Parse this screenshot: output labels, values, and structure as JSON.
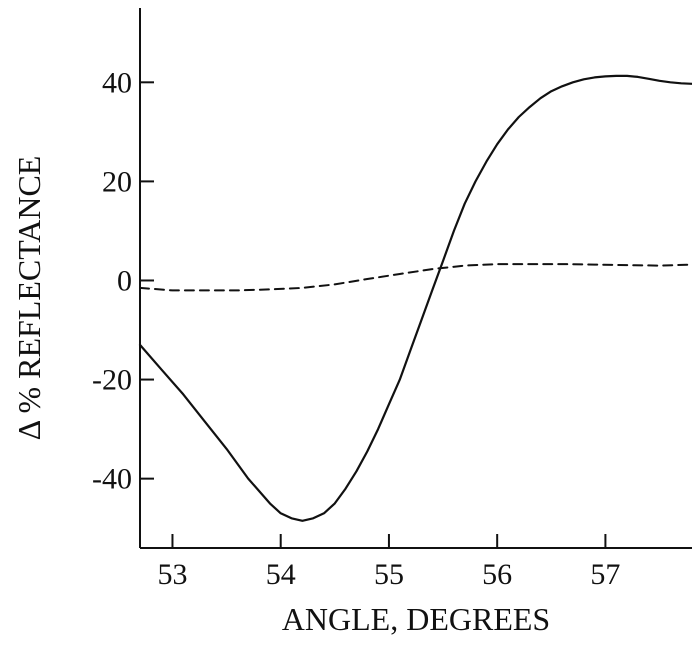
{
  "chart_data": {
    "type": "line",
    "title": "",
    "xlabel": "ANGLE, DEGREES",
    "ylabel": "Δ % REFLECTANCE",
    "xlim": [
      52.7,
      57.8
    ],
    "ylim": [
      -54,
      55
    ],
    "x_ticks": [
      53,
      54,
      55,
      56,
      57
    ],
    "y_ticks": [
      40,
      20,
      0,
      -20,
      -40
    ],
    "grid": false,
    "legend": "none",
    "series": [
      {
        "line_style": "solid",
        "color": "#111111",
        "x": [
          52.7,
          52.9,
          53.1,
          53.3,
          53.5,
          53.7,
          53.9,
          54.0,
          54.1,
          54.2,
          54.3,
          54.4,
          54.5,
          54.6,
          54.7,
          54.8,
          54.9,
          55.0,
          55.1,
          55.2,
          55.3,
          55.4,
          55.5,
          55.6,
          55.7,
          55.8,
          55.9,
          56.0,
          56.1,
          56.2,
          56.3,
          56.4,
          56.5,
          56.6,
          56.7,
          56.8,
          56.9,
          57.0,
          57.1,
          57.2,
          57.3,
          57.4,
          57.5,
          57.6,
          57.7,
          57.8
        ],
        "y": [
          -13,
          -18,
          -23,
          -28.5,
          -34,
          -40,
          -45,
          -47,
          -48,
          -48.5,
          -48,
          -47,
          -45,
          -42,
          -38.5,
          -34.5,
          -30,
          -25,
          -20,
          -14,
          -8,
          -2,
          4,
          10,
          15.5,
          20,
          24,
          27.5,
          30.5,
          33,
          35,
          36.8,
          38.2,
          39.2,
          40,
          40.6,
          41,
          41.2,
          41.3,
          41.3,
          41.1,
          40.7,
          40.3,
          40,
          39.8,
          39.7
        ]
      },
      {
        "line_style": "dashed",
        "color": "#111111",
        "x": [
          52.7,
          53.0,
          53.3,
          53.6,
          53.9,
          54.2,
          54.5,
          54.8,
          55.1,
          55.4,
          55.7,
          56.0,
          56.3,
          56.6,
          56.9,
          57.2,
          57.5,
          57.8
        ],
        "y": [
          -1.5,
          -2,
          -2,
          -2,
          -1.8,
          -1.5,
          -0.8,
          0.3,
          1.3,
          2.3,
          3,
          3.3,
          3.3,
          3.3,
          3.2,
          3.1,
          3.0,
          3.2
        ]
      }
    ]
  }
}
